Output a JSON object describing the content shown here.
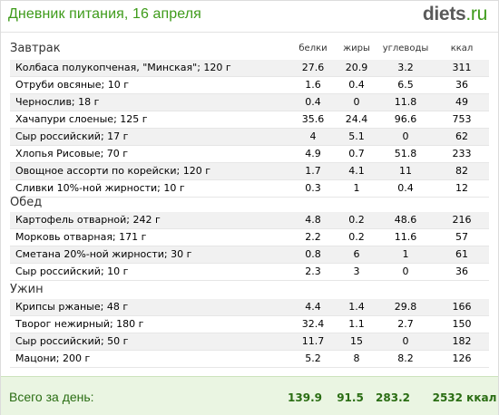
{
  "header": {
    "title": "Дневник питания, 16 апреля",
    "logo_main": "diets",
    "logo_tld": ".ru"
  },
  "columns": {
    "protein": "белки",
    "fat": "жиры",
    "carbs": "углеводы",
    "kcal": "ккал"
  },
  "meals": [
    {
      "name": "Завтрак",
      "items": [
        {
          "name": "Колбаса полукопченая, \"Минская\"; 120 г",
          "protein": "27.6",
          "fat": "20.9",
          "carbs": "3.2",
          "kcal": "311"
        },
        {
          "name": "Отруби овсяные; 10 г",
          "protein": "1.6",
          "fat": "0.4",
          "carbs": "6.5",
          "kcal": "36"
        },
        {
          "name": "Чернослив; 18 г",
          "protein": "0.4",
          "fat": "0",
          "carbs": "11.8",
          "kcal": "49"
        },
        {
          "name": "Хачапури слоеные; 125 г",
          "protein": "35.6",
          "fat": "24.4",
          "carbs": "96.6",
          "kcal": "753"
        },
        {
          "name": "Сыр российский; 17 г",
          "protein": "4",
          "fat": "5.1",
          "carbs": "0",
          "kcal": "62"
        },
        {
          "name": "Хлопья Рисовые; 70 г",
          "protein": "4.9",
          "fat": "0.7",
          "carbs": "51.8",
          "kcal": "233"
        },
        {
          "name": "Овощное ассорти по корейски; 120 г",
          "protein": "1.7",
          "fat": "4.1",
          "carbs": "11",
          "kcal": "82"
        },
        {
          "name": "Сливки 10%-ной жирности; 10 г",
          "protein": "0.3",
          "fat": "1",
          "carbs": "0.4",
          "kcal": "12"
        }
      ]
    },
    {
      "name": "Обед",
      "items": [
        {
          "name": "Картофель отварной; 242 г",
          "protein": "4.8",
          "fat": "0.2",
          "carbs": "48.6",
          "kcal": "216"
        },
        {
          "name": "Морковь отварная; 171 г",
          "protein": "2.2",
          "fat": "0.2",
          "carbs": "11.6",
          "kcal": "57"
        },
        {
          "name": "Сметана 20%-ной жирности; 30 г",
          "protein": "0.8",
          "fat": "6",
          "carbs": "1",
          "kcal": "61"
        },
        {
          "name": "Сыр российский; 10 г",
          "protein": "2.3",
          "fat": "3",
          "carbs": "0",
          "kcal": "36"
        }
      ]
    },
    {
      "name": "Ужин",
      "items": [
        {
          "name": "Крипсы ржаные; 48 г",
          "protein": "4.4",
          "fat": "1.4",
          "carbs": "29.8",
          "kcal": "166"
        },
        {
          "name": "Творог нежирный; 180 г",
          "protein": "32.4",
          "fat": "1.1",
          "carbs": "2.7",
          "kcal": "150"
        },
        {
          "name": "Сыр российский; 50 г",
          "protein": "11.7",
          "fat": "15",
          "carbs": "0",
          "kcal": "182"
        },
        {
          "name": "Мацони; 200 г",
          "protein": "5.2",
          "fat": "8",
          "carbs": "8.2",
          "kcal": "126"
        }
      ]
    }
  ],
  "total": {
    "label": "Всего за день:",
    "protein": "139.9",
    "fat": "91.5",
    "carbs": "283.2",
    "kcal": "2532 ккал"
  }
}
